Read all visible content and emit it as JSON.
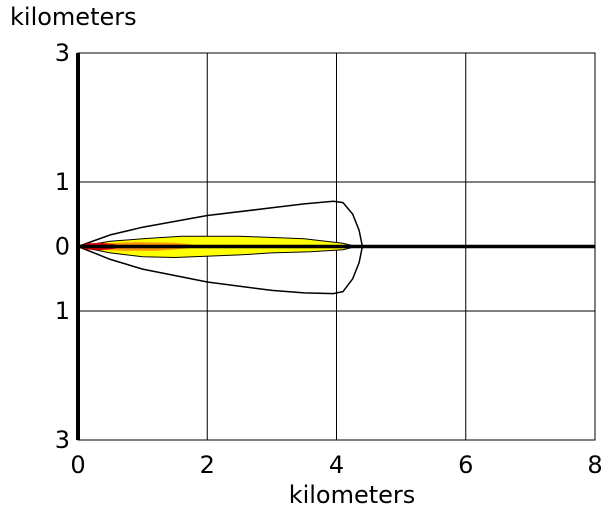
{
  "chart_data": {
    "type": "area",
    "ylabel": "kilometers",
    "xlabel": "kilometers",
    "xlim": [
      0,
      8
    ],
    "ylim": [
      -3,
      3
    ],
    "x_ticks": [
      "0",
      "2",
      "4",
      "6",
      "8"
    ],
    "y_ticks": [
      {
        "value": 3,
        "label": "3"
      },
      {
        "value": 1,
        "label": "1"
      },
      {
        "value": 0,
        "label": "0"
      },
      {
        "value": -1,
        "label": "1"
      },
      {
        "value": -3,
        "label": "3"
      }
    ],
    "grid": true,
    "colors": {
      "outer_outline": "#000000",
      "yellow_zone": "#ffff00",
      "orange_zone": "#ff9900",
      "red_zone": "#dd0000",
      "centerline": "#000000"
    },
    "outer_contour": [
      [
        0,
        0
      ],
      [
        0.5,
        0.18
      ],
      [
        1,
        0.3
      ],
      [
        2,
        0.48
      ],
      [
        3,
        0.6
      ],
      [
        3.5,
        0.66
      ],
      [
        3.95,
        0.7
      ],
      [
        4.1,
        0.68
      ],
      [
        4.25,
        0.5
      ],
      [
        4.35,
        0.25
      ],
      [
        4.4,
        0
      ],
      [
        4.35,
        -0.25
      ],
      [
        4.25,
        -0.5
      ],
      [
        4.1,
        -0.7
      ],
      [
        3.95,
        -0.73
      ],
      [
        3.5,
        -0.72
      ],
      [
        3,
        -0.68
      ],
      [
        2,
        -0.55
      ],
      [
        1,
        -0.35
      ],
      [
        0.5,
        -0.2
      ],
      [
        0,
        0
      ]
    ],
    "yellow_zone": [
      [
        0,
        0
      ],
      [
        0.5,
        0.08
      ],
      [
        1,
        0.12
      ],
      [
        1.6,
        0.16
      ],
      [
        2.5,
        0.16
      ],
      [
        3.5,
        0.12
      ],
      [
        4.1,
        0.05
      ],
      [
        4.3,
        0
      ],
      [
        4.1,
        -0.05
      ],
      [
        3.6,
        -0.08
      ],
      [
        3,
        -0.1
      ],
      [
        2.5,
        -0.13
      ],
      [
        1.5,
        -0.17
      ],
      [
        1,
        -0.16
      ],
      [
        0.5,
        -0.1
      ],
      [
        0,
        0
      ]
    ],
    "orange_zone": [
      [
        0,
        0
      ],
      [
        0.4,
        0.04
      ],
      [
        0.9,
        0.06
      ],
      [
        1.5,
        0.05
      ],
      [
        1.8,
        0.02
      ],
      [
        1.9,
        0
      ],
      [
        1.6,
        -0.03
      ],
      [
        1.2,
        -0.06
      ],
      [
        0.7,
        -0.06
      ],
      [
        0.3,
        -0.04
      ],
      [
        0,
        0
      ]
    ],
    "red_zone": [
      [
        0,
        0
      ],
      [
        0.15,
        0.04
      ],
      [
        0.35,
        0.05
      ],
      [
        0.55,
        0.03
      ],
      [
        0.65,
        0
      ],
      [
        0.55,
        -0.03
      ],
      [
        0.35,
        -0.05
      ],
      [
        0.15,
        -0.04
      ],
      [
        0,
        0
      ]
    ],
    "centerline": [
      [
        0,
        0
      ],
      [
        8,
        0
      ]
    ]
  }
}
